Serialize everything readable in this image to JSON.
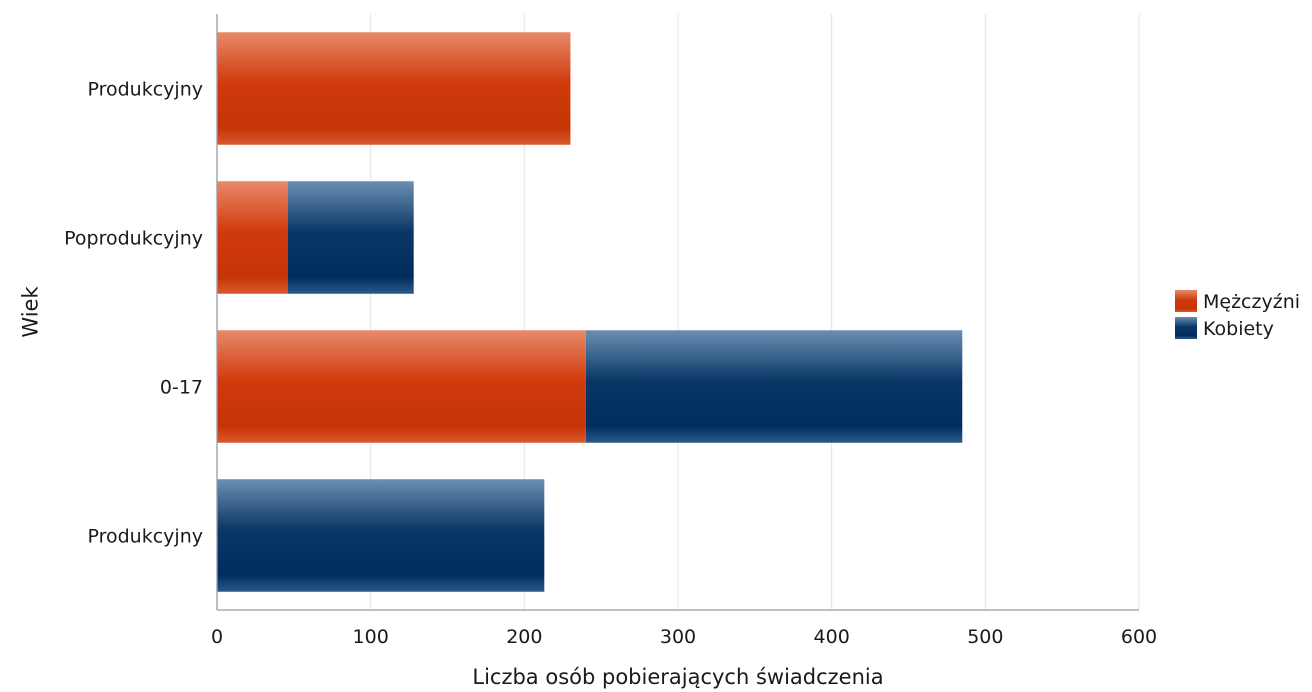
{
  "chart_data": {
    "type": "bar",
    "orientation": "horizontal",
    "stacked": true,
    "categories": [
      "Produkcyjny",
      "Poprodukcyjny",
      "0-17",
      "Produkcyjny"
    ],
    "series": [
      {
        "name": "Mężczyźni",
        "color": "#d13a0c",
        "values": [
          230,
          46,
          240,
          0
        ]
      },
      {
        "name": "Kobiety",
        "color": "#0a3766",
        "values": [
          0,
          82,
          245,
          213
        ]
      }
    ],
    "xlabel": "Liczba osób pobierających świadczenia",
    "ylabel": "Wiek",
    "xlim": [
      0,
      600
    ],
    "xticks": [
      "0",
      "100",
      "200",
      "300",
      "400",
      "500",
      "600"
    ],
    "grid": true,
    "legend_position": "right"
  }
}
